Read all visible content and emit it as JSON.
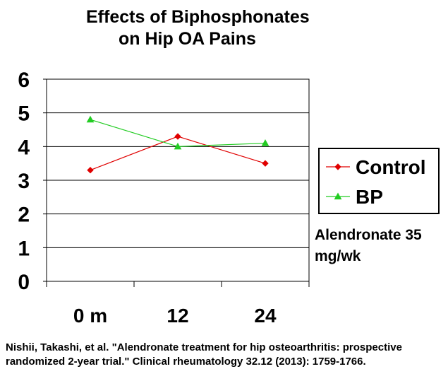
{
  "chart_data": {
    "type": "line",
    "title_lines": [
      "Effects of Biphosphonates",
      "on Hip OA Pains"
    ],
    "categories": [
      "0 m",
      "12",
      "24"
    ],
    "ylim": [
      0,
      6
    ],
    "yticks": [
      "0",
      "1",
      "2",
      "3",
      "4",
      "5",
      "6"
    ],
    "grid": true,
    "legend_position": "right",
    "series": [
      {
        "name": "Control",
        "values": [
          3.3,
          4.3,
          3.5
        ],
        "color": "#e00000",
        "marker": "diamond"
      },
      {
        "name": "BP",
        "values": [
          4.8,
          4.0,
          4.1
        ],
        "color": "#22cc22",
        "marker": "triangle"
      }
    ]
  },
  "annotation_lines": [
    "Alendronate 35",
    "mg/wk"
  ],
  "citation_lines": [
    "Nishii, Takashi, et al. \"Alendronate treatment for hip osteoarthritis: prospective",
    "randomized 2-year trial.\" Clinical rheumatology 32.12 (2013): 1759-1766."
  ]
}
